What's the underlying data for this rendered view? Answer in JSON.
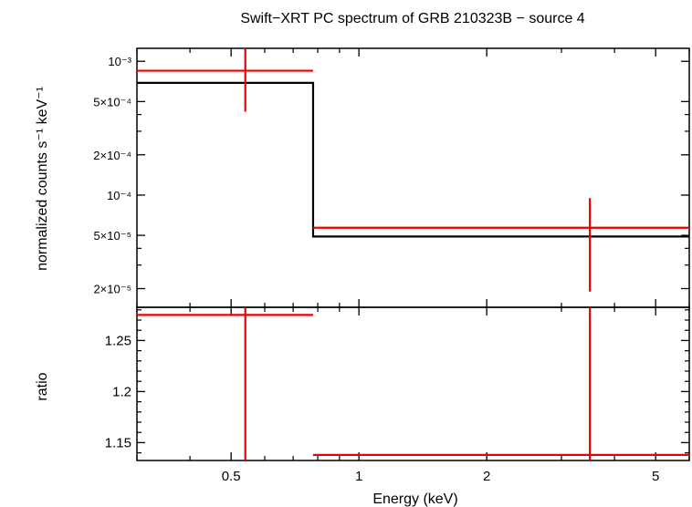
{
  "chart_data": [
    {
      "type": "line",
      "panel": "top",
      "title": "Swift−XRT PC spectrum of GRB 210323B − source 4",
      "xlabel": "Energy (keV)",
      "ylabel": "normalized counts s⁻¹ keV⁻¹",
      "xscale": "log",
      "yscale": "log",
      "xlim": [
        0.3,
        6.0
      ],
      "ylim": [
        1.45e-05,
        0.00125
      ],
      "yticks": [
        {
          "value": 0.001,
          "label": "10⁻³"
        },
        {
          "value": 0.0005,
          "label": "5×10⁻⁴"
        },
        {
          "value": 0.0002,
          "label": "2×10⁻⁴"
        },
        {
          "value": 0.0001,
          "label": "10⁻⁴"
        },
        {
          "value": 5e-05,
          "label": "5×10⁻⁵"
        },
        {
          "value": 2e-05,
          "label": "2×10⁻⁵"
        }
      ],
      "data_points": [
        {
          "x": 0.54,
          "x_lo": 0.3,
          "x_hi": 0.78,
          "y": 0.00085,
          "y_lo": 0.00042,
          "y_hi": 0.00125
        },
        {
          "x": 3.5,
          "x_lo": 0.78,
          "x_hi": 6.0,
          "y": 5.7e-05,
          "y_lo": 1.9e-05,
          "y_hi": 9.5e-05
        }
      ],
      "model_steps": [
        {
          "x_lo": 0.3,
          "x_hi": 0.78,
          "y": 0.00069
        },
        {
          "x_lo": 0.78,
          "x_hi": 6.0,
          "y": 4.9e-05
        }
      ],
      "colors": {
        "data": "#ee0000",
        "model": "#000000"
      }
    },
    {
      "type": "scatter",
      "panel": "bottom",
      "xlabel": "Energy (keV)",
      "ylabel": "ratio",
      "xscale": "log",
      "xlim": [
        0.3,
        6.0
      ],
      "ylim": [
        1.1325,
        1.2825
      ],
      "xticks": [
        {
          "value": 0.5,
          "label": "0.5"
        },
        {
          "value": 1,
          "label": "1"
        },
        {
          "value": 2,
          "label": "2"
        },
        {
          "value": 5,
          "label": "5"
        }
      ],
      "yticks": [
        {
          "value": 1.15,
          "label": "1.15"
        },
        {
          "value": 1.2,
          "label": "1.2"
        },
        {
          "value": 1.25,
          "label": "1.25"
        }
      ],
      "data_points": [
        {
          "x": 0.54,
          "x_lo": 0.3,
          "x_hi": 0.78,
          "y": 1.275,
          "y_lo": 1.1325,
          "y_hi": 1.2825
        },
        {
          "x": 3.5,
          "x_lo": 0.78,
          "x_hi": 6.0,
          "y": 1.138,
          "y_lo": 1.1325,
          "y_hi": 1.2825
        }
      ],
      "colors": {
        "data": "#ee0000"
      }
    }
  ]
}
